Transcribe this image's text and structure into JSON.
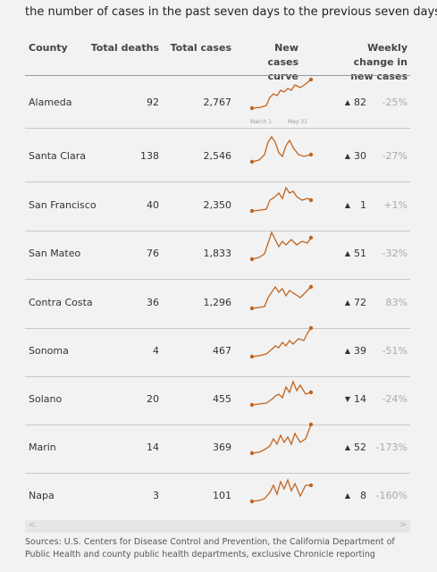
{
  "intro": "the number of cases in the past seven days to the previous seven days.",
  "table": {
    "headers": [
      "County",
      "Total deaths",
      "Total cases",
      "New cases curve",
      "Weekly change in new cases"
    ],
    "rows": [
      [
        "Alameda",
        "92",
        "2,767",
        "▲",
        "82",
        "-25%"
      ],
      [
        "Santa Clara",
        "138",
        "2,546",
        "▲",
        "30",
        "-27%"
      ],
      [
        "San Francisco",
        "40",
        "2,350",
        "▲",
        "1",
        "+1%"
      ],
      [
        "San Mateo",
        "76",
        "1,833",
        "▲",
        "51",
        "-32%"
      ],
      [
        "Contra Costa",
        "36",
        "1,296",
        "▲",
        "72",
        "83%"
      ],
      [
        "Sonoma",
        "4",
        "467",
        "▲",
        "39",
        "-51%"
      ],
      [
        "Solano",
        "20",
        "455",
        "▼",
        "14",
        "-24%"
      ],
      [
        "Marin",
        "14",
        "369",
        "▲",
        "52",
        "-173%"
      ],
      [
        "Napa",
        "3",
        "101",
        "▲",
        "8",
        "-160%"
      ]
    ]
  },
  "curve_labels": [
    "March 1",
    "May 31"
  ],
  "source": "Sources: U.S. Centers for Disease Control and Prevention, the California Department of Public Health and county public health departments, exclusive Chronicle reporting"
}
